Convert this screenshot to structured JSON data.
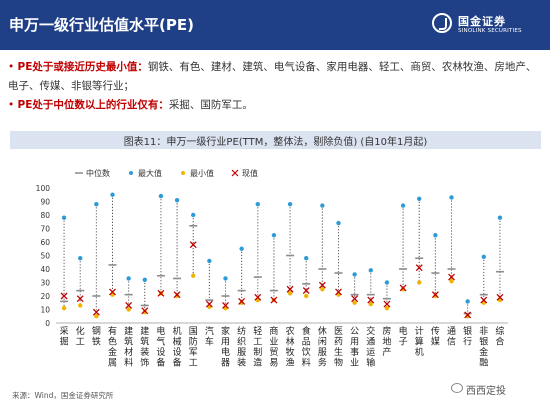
{
  "header": {
    "title": "申万一级行业估值水平(PE)",
    "logo_cn": "国金证券",
    "logo_en": "SINOLINK SECURITIES"
  },
  "bullets": [
    {
      "mark": "• ",
      "highlight": "PE处于或接近历史最小值：",
      "text": "钢铁、有色、建材、建筑、电气设备、家用电器、轻工、商贸、农林牧渔、房地产、电子、传媒、非银等行业；"
    },
    {
      "mark": "• ",
      "highlight": "PE处于中位数以上的行业仅有：",
      "text": "采掘、国防军工。"
    }
  ],
  "chart_title": "图表11：申万一级行业PE(TTM，整体法，剔除负值) (自10年1月起)",
  "source": "来源：Wind，国金证券研究所",
  "watermark": "西西定投",
  "colors": {
    "header": "#1f3f86",
    "median": "#8c8c8c",
    "max": "#2e9bd6",
    "min": "#f0b400",
    "current": "#c00000"
  },
  "chart_data": {
    "type": "scatter",
    "title": "申万一级行业PE(TTM，整体法，剔除负值) (自10年1月起)",
    "legend": [
      "中位数",
      "最大值",
      "最小值",
      "现值"
    ],
    "legend_position": "top-left",
    "ylim": [
      0,
      100
    ],
    "yticks": [
      0,
      10,
      20,
      30,
      40,
      50,
      60,
      70,
      80,
      90,
      100
    ],
    "categories": [
      "采掘",
      "化工",
      "钢铁",
      "有色金属",
      "建筑材料",
      "建筑装饰",
      "电气设备",
      "机械设备",
      "国防军工",
      "汽车",
      "家用电器",
      "纺织服装",
      "轻工制造",
      "商业贸易",
      "农林牧渔",
      "食品饮料",
      "休闲服务",
      "医药生物",
      "公用事业",
      "交通运输",
      "房地产",
      "电子",
      "计算机",
      "传媒",
      "通信",
      "银行",
      "非银金融",
      "综合"
    ],
    "series": [
      {
        "name": "中位数",
        "values": [
          16,
          24,
          20,
          43,
          21,
          13,
          35,
          33,
          72,
          17,
          20,
          24,
          34,
          24,
          50,
          29,
          40,
          37,
          21,
          21,
          18,
          40,
          48,
          37,
          40,
          7,
          21,
          38
        ]
      },
      {
        "name": "最大值",
        "values": [
          78,
          48,
          88,
          95,
          33,
          32,
          94,
          91,
          80,
          46,
          33,
          55,
          88,
          65,
          88,
          48,
          87,
          74,
          36,
          39,
          30,
          87,
          92,
          65,
          93,
          16,
          49,
          78
        ]
      },
      {
        "name": "最小值",
        "values": [
          11,
          13,
          5,
          21,
          10,
          8,
          22,
          20,
          35,
          12,
          11,
          15,
          17,
          17,
          22,
          20,
          25,
          21,
          15,
          14,
          11,
          25,
          30,
          20,
          31,
          5,
          15,
          17
        ]
      },
      {
        "name": "现值",
        "values": [
          20,
          18,
          8,
          23,
          13,
          9,
          22,
          21,
          58,
          14,
          13,
          16,
          19,
          17,
          25,
          24,
          28,
          23,
          18,
          17,
          14,
          26,
          41,
          21,
          34,
          6,
          17,
          19
        ]
      }
    ]
  }
}
